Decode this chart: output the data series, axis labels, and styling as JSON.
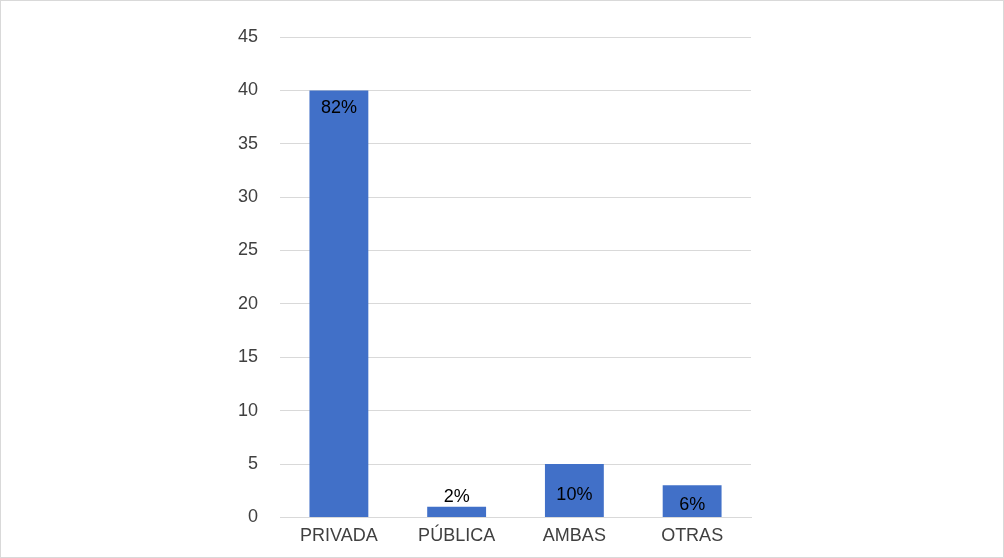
{
  "chart_data": {
    "type": "bar",
    "categories": [
      "PRIVADA",
      "PÚBLICA",
      "AMBAS",
      "OTRAS"
    ],
    "values": [
      40,
      1,
      5,
      3
    ],
    "annotations": [
      {
        "text": "82%",
        "x": "PRIVADA",
        "y": 40
      },
      {
        "text": "2%",
        "x": "PÚBLICA",
        "y": 1
      },
      {
        "text": "10%",
        "x": "AMBAS",
        "y": 5
      },
      {
        "text": "6%",
        "x": "OTRAS",
        "y": 3
      }
    ],
    "color": "#4170c8",
    "ylim": [
      0,
      45
    ],
    "yticks": [
      0,
      5,
      10,
      15,
      20,
      25,
      30,
      35,
      40,
      45
    ],
    "grid": "y",
    "legend": false
  }
}
